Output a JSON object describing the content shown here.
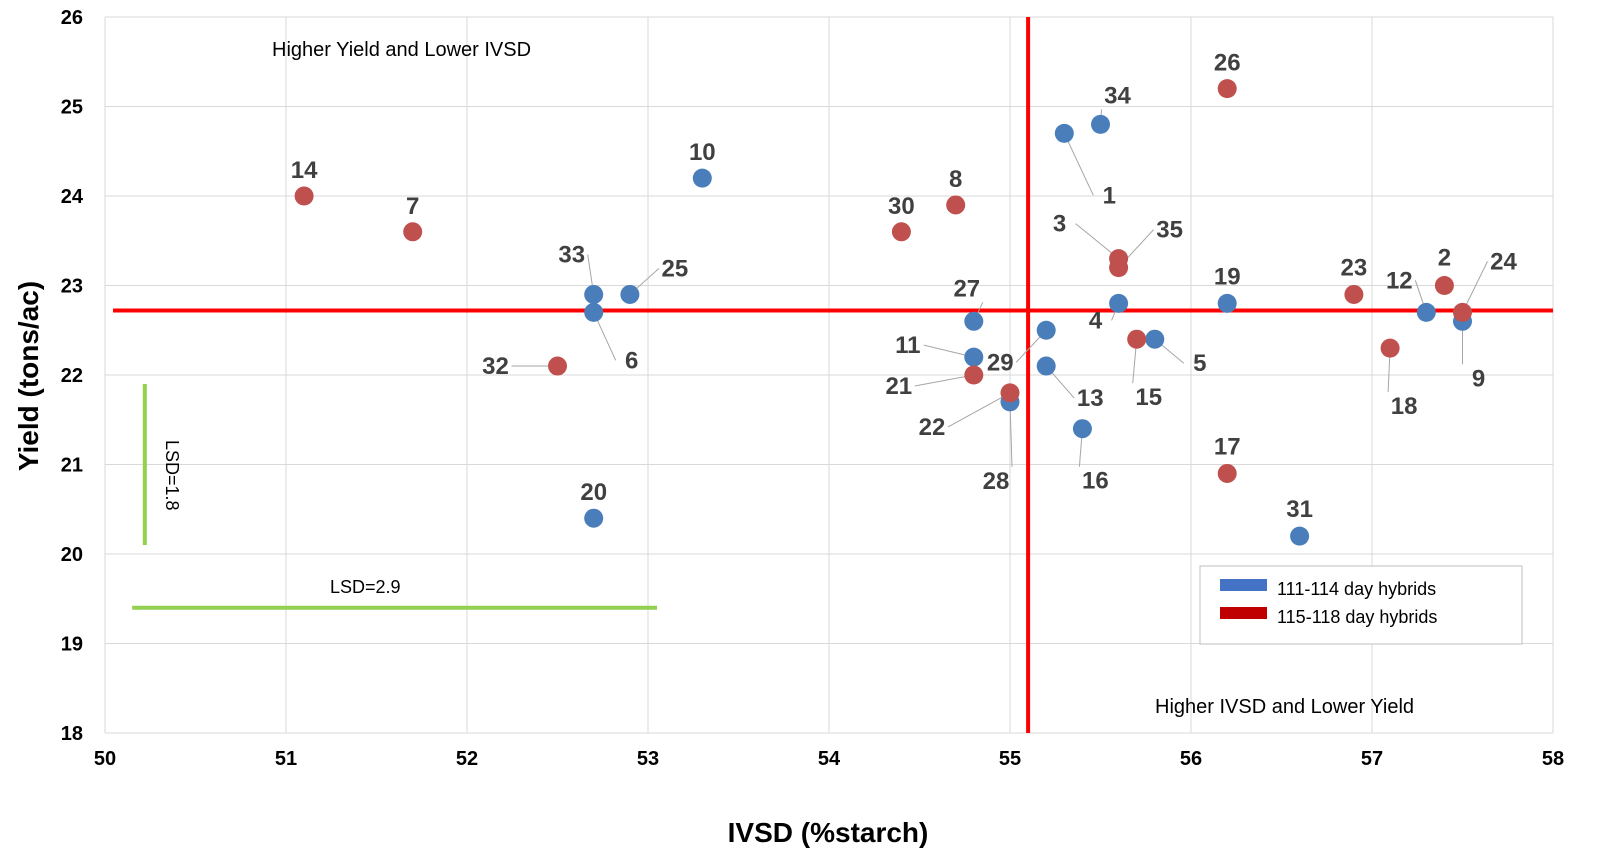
{
  "chart_data": {
    "type": "scatter",
    "xlabel": "IVSD (%starch)",
    "ylabel": "Yield (tons/ac)",
    "xlim": [
      50,
      58
    ],
    "ylim": [
      18,
      26
    ],
    "x_ticks": [
      "50",
      "51",
      "52",
      "53",
      "54",
      "55",
      "56",
      "57",
      "58"
    ],
    "y_ticks": [
      "18",
      "19",
      "20",
      "21",
      "22",
      "23",
      "24",
      "25",
      "26"
    ],
    "grid": true,
    "mean_lines": {
      "x": 55.1,
      "y": 22.72,
      "color": "#ff0000"
    },
    "quadrant_labels": [
      "Higher Yield and Lower IVSD",
      "Higher IVSD and Lower Yield"
    ],
    "lsd": {
      "x_label": "LSD=2.9",
      "x_value": 2.9,
      "x_start": 50.15,
      "x_at_y": 19.4,
      "y_label": "LSD=1.8",
      "y_value": 1.8,
      "y_start": 20.1,
      "y_at_x": 50.22,
      "color": "#92d050"
    },
    "legend": {
      "position": "bottom-right"
    },
    "series": [
      {
        "name": "111-114 day hybrids",
        "color": "#4a7ebb",
        "points": [
          {
            "id": "1",
            "x": 55.3,
            "y": 24.7
          },
          {
            "id": "34",
            "x": 55.5,
            "y": 24.8
          },
          {
            "id": "10",
            "x": 53.3,
            "y": 24.2
          },
          {
            "id": "33",
            "x": 52.7,
            "y": 22.9
          },
          {
            "id": "25",
            "x": 52.9,
            "y": 22.9
          },
          {
            "id": "6",
            "x": 52.7,
            "y": 22.7
          },
          {
            "id": "20",
            "x": 52.7,
            "y": 20.4
          },
          {
            "id": "27",
            "x": 54.8,
            "y": 22.6
          },
          {
            "id": "11",
            "x": 54.8,
            "y": 22.2
          },
          {
            "id": "28",
            "x": 55.0,
            "y": 21.7
          },
          {
            "id": "29",
            "x": 55.2,
            "y": 22.5
          },
          {
            "id": "13",
            "x": 55.2,
            "y": 22.1
          },
          {
            "id": "16",
            "x": 55.4,
            "y": 21.4
          },
          {
            "id": "4",
            "x": 55.6,
            "y": 22.8
          },
          {
            "id": "5",
            "x": 55.8,
            "y": 22.4
          },
          {
            "id": "19",
            "x": 56.2,
            "y": 22.8
          },
          {
            "id": "31",
            "x": 56.6,
            "y": 20.2
          },
          {
            "id": "12",
            "x": 57.3,
            "y": 22.7
          },
          {
            "id": "9",
            "x": 57.5,
            "y": 22.6
          }
        ]
      },
      {
        "name": "115-118 day hybrids",
        "color": "#c0504d",
        "points": [
          {
            "id": "14",
            "x": 51.1,
            "y": 24.0
          },
          {
            "id": "7",
            "x": 51.7,
            "y": 23.6
          },
          {
            "id": "32",
            "x": 52.5,
            "y": 22.1
          },
          {
            "id": "30",
            "x": 54.4,
            "y": 23.6
          },
          {
            "id": "8",
            "x": 54.7,
            "y": 23.9
          },
          {
            "id": "21",
            "x": 54.8,
            "y": 22.0
          },
          {
            "id": "22",
            "x": 55.0,
            "y": 21.8
          },
          {
            "id": "3",
            "x": 55.6,
            "y": 23.3
          },
          {
            "id": "35",
            "x": 55.6,
            "y": 23.2
          },
          {
            "id": "15",
            "x": 55.7,
            "y": 22.4
          },
          {
            "id": "26",
            "x": 56.2,
            "y": 25.2
          },
          {
            "id": "17",
            "x": 56.2,
            "y": 20.9
          },
          {
            "id": "23",
            "x": 56.9,
            "y": 22.9
          },
          {
            "id": "2",
            "x": 57.4,
            "y": 23.0
          },
          {
            "id": "24",
            "x": 57.5,
            "y": 22.7
          },
          {
            "id": "18",
            "x": 57.1,
            "y": 22.3
          }
        ]
      }
    ]
  }
}
